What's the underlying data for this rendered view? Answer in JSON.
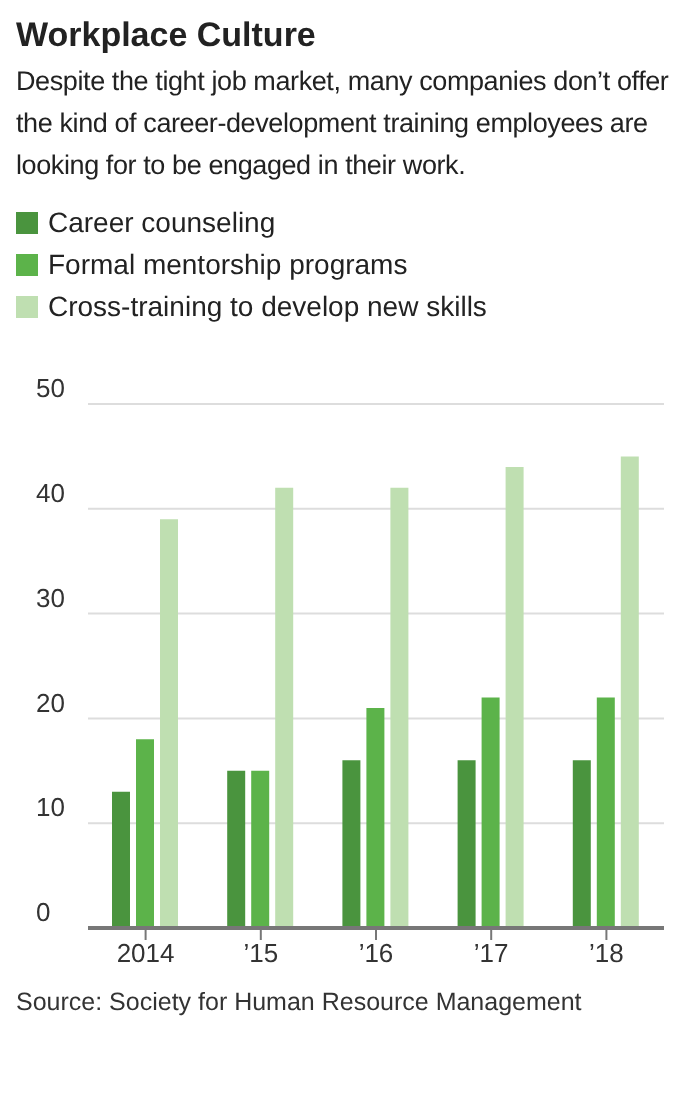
{
  "chart_data": {
    "type": "bar",
    "title": "Workplace Culture",
    "subtitle": "Despite the tight job market, many companies don’t offer the kind of career-development training employees are looking for to be engaged in their work.",
    "categories": [
      "2014",
      "’15",
      "’16",
      "’17",
      "’18"
    ],
    "series": [
      {
        "name": "Career counseling",
        "color": "#4a943e",
        "values": [
          13,
          15,
          16,
          16,
          16
        ]
      },
      {
        "name": "Formal mentorship programs",
        "color": "#5cb34a",
        "values": [
          18,
          15,
          21,
          22,
          22
        ]
      },
      {
        "name": "Cross-training to develop new skills",
        "color": "#bfdfb1",
        "values": [
          39,
          42,
          42,
          44,
          45
        ]
      }
    ],
    "ylim": [
      0,
      50
    ],
    "yticks": [
      0,
      10,
      20,
      30,
      40,
      50
    ],
    "grid": "y",
    "legend": "top left",
    "annotations": [
      "Source: Society for Human Resource Management"
    ]
  }
}
